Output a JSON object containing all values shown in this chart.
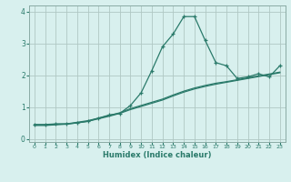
{
  "xlabel": "Humidex (Indice chaleur)",
  "bg_color": "#d8f0ee",
  "line_color": "#2a7a6a",
  "grid_color": "#b0c8c4",
  "spine_color": "#8aaaa4",
  "xlim": [
    -0.5,
    23.5
  ],
  "ylim": [
    -0.1,
    4.2
  ],
  "xticks": [
    0,
    1,
    2,
    3,
    4,
    5,
    6,
    7,
    8,
    9,
    10,
    11,
    12,
    13,
    14,
    15,
    16,
    17,
    18,
    19,
    20,
    21,
    22,
    23
  ],
  "yticks": [
    0,
    1,
    2,
    3,
    4
  ],
  "line1_x": [
    0,
    1,
    2,
    3,
    4,
    5,
    6,
    7,
    8,
    9,
    10,
    11,
    12,
    13,
    14,
    15,
    16,
    17,
    18,
    19,
    20,
    21,
    22,
    23
  ],
  "line1_y": [
    0.45,
    0.45,
    0.47,
    0.47,
    0.5,
    0.55,
    0.65,
    0.75,
    0.8,
    1.05,
    1.45,
    2.15,
    2.9,
    3.3,
    3.85,
    3.85,
    3.1,
    2.4,
    2.3,
    1.9,
    1.95,
    2.05,
    1.95,
    2.3
  ],
  "line2_x": [
    0,
    1,
    2,
    3,
    4,
    5,
    6,
    7,
    8,
    9,
    10,
    11,
    12,
    13,
    14,
    15,
    16,
    17,
    18,
    19,
    20,
    21,
    22,
    23
  ],
  "line2_y": [
    0.44,
    0.44,
    0.46,
    0.47,
    0.52,
    0.57,
    0.65,
    0.73,
    0.82,
    0.95,
    1.05,
    1.15,
    1.25,
    1.38,
    1.5,
    1.6,
    1.68,
    1.75,
    1.8,
    1.86,
    1.92,
    1.98,
    2.04,
    2.1
  ],
  "line3_x": [
    0,
    1,
    2,
    3,
    4,
    5,
    6,
    7,
    8,
    9,
    10,
    11,
    12,
    13,
    14,
    15,
    16,
    17,
    18,
    19,
    20,
    21,
    22,
    23
  ],
  "line3_y": [
    0.42,
    0.42,
    0.44,
    0.46,
    0.5,
    0.55,
    0.63,
    0.71,
    0.8,
    0.92,
    1.02,
    1.12,
    1.22,
    1.35,
    1.47,
    1.57,
    1.65,
    1.72,
    1.78,
    1.84,
    1.9,
    1.96,
    2.02,
    2.08
  ]
}
